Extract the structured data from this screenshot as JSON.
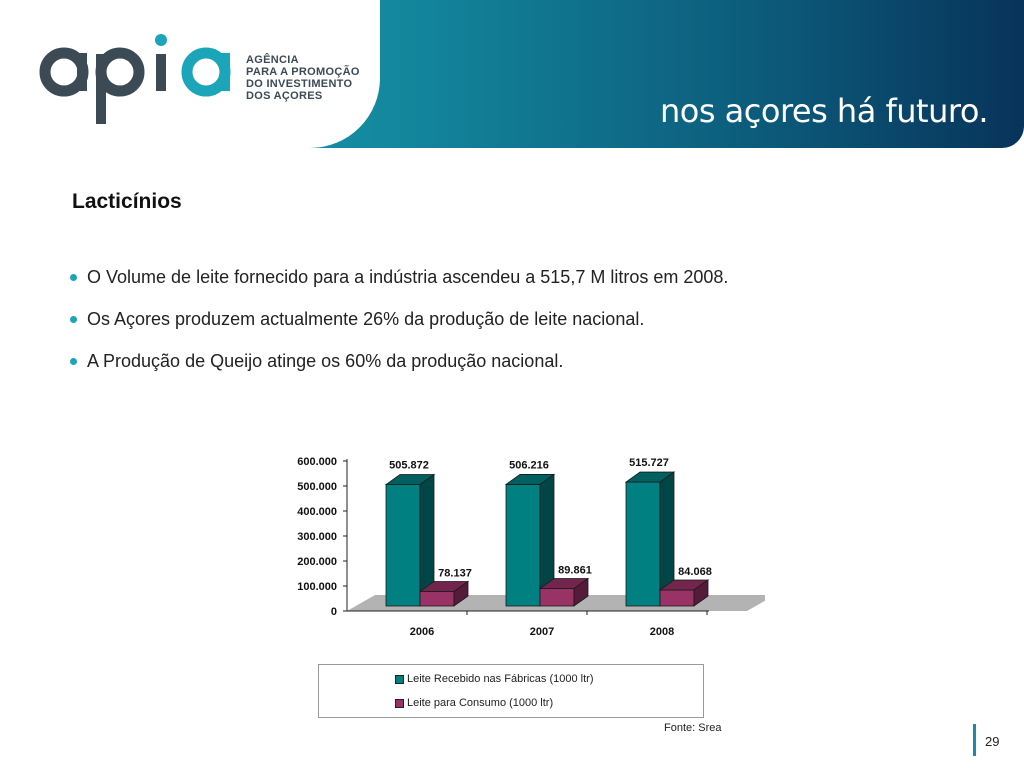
{
  "header": {
    "logo_text": "apia",
    "agency_lines": [
      "AGÊNCIA",
      "PARA A PROMOÇÃO",
      "DO INVESTIMENTO",
      "DOS AÇORES"
    ],
    "tagline": "nos açores há futuro."
  },
  "slide": {
    "title": "Lacticínios",
    "bullets": [
      "O Volume de leite fornecido para a indústria ascendeu a 515,7 M litros em 2008.",
      "Os Açores produzem actualmente 26% da produção de leite nacional.",
      "A Produção de Queijo atinge os 60% da produção nacional."
    ],
    "source": "Fonte: Srea",
    "page_number": "29"
  },
  "colors": {
    "accent": "#1aa6b8",
    "series1": "#008080",
    "series2": "#993366"
  },
  "chart_data": {
    "type": "bar",
    "categories": [
      "2006",
      "2007",
      "2008"
    ],
    "series": [
      {
        "name": "Leite Recebido nas Fábricas (1000 ltr)",
        "values": [
          505872,
          506216,
          515727
        ],
        "labels": [
          "505.872",
          "506.216",
          "515.727"
        ]
      },
      {
        "name": "Leite para Consumo (1000 ltr)",
        "values": [
          78137,
          89861,
          84068
        ],
        "labels": [
          "78.137",
          "89.861",
          "84.068"
        ]
      }
    ],
    "ylim": [
      0,
      600000
    ],
    "yticks": [
      "0",
      "100.000",
      "200.000",
      "300.000",
      "400.000",
      "500.000",
      "600.000"
    ],
    "legend": "bottom",
    "grid": false,
    "style": "3d"
  }
}
